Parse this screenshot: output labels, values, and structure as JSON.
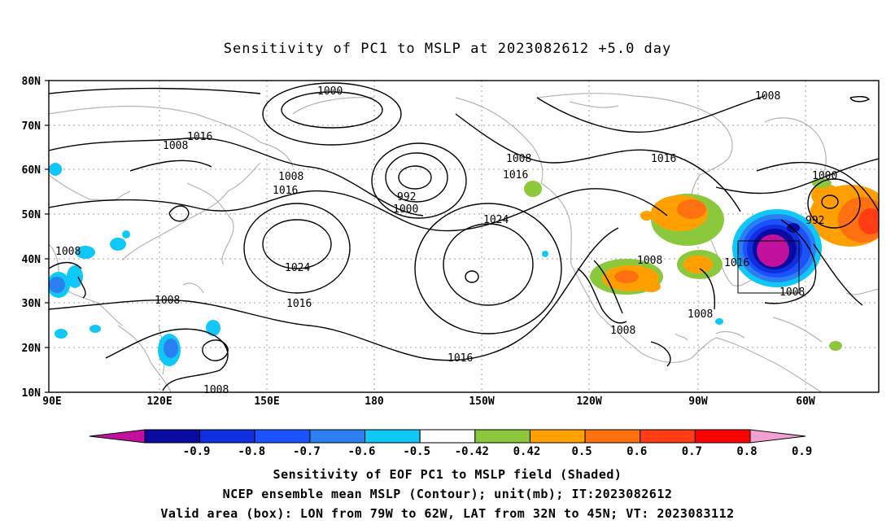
{
  "title": "Sensitivity of PC1 to MSLP at 2023082612 +5.0 day",
  "lat_ticks": [
    "80N",
    "70N",
    "60N",
    "50N",
    "40N",
    "30N",
    "20N",
    "10N"
  ],
  "lon_ticks": [
    "90E",
    "120E",
    "150E",
    "180",
    "150W",
    "120W",
    "90W",
    "60W"
  ],
  "contour_labels": [
    {
      "id": "c1",
      "text": "1000"
    },
    {
      "id": "c2",
      "text": "1008"
    },
    {
      "id": "c3",
      "text": "1016"
    },
    {
      "id": "c4",
      "text": "1008"
    },
    {
      "id": "c5",
      "text": "1008"
    },
    {
      "id": "c6",
      "text": "1016"
    },
    {
      "id": "c7",
      "text": "1008"
    },
    {
      "id": "c8",
      "text": "1016"
    },
    {
      "id": "c9",
      "text": "992"
    },
    {
      "id": "c10",
      "text": "1000"
    },
    {
      "id": "c11",
      "text": "1024"
    },
    {
      "id": "c12",
      "text": "1008"
    },
    {
      "id": "c13",
      "text": "1024"
    },
    {
      "id": "c14",
      "text": "1016"
    },
    {
      "id": "c15",
      "text": "1008"
    },
    {
      "id": "c16",
      "text": "1016"
    },
    {
      "id": "c17",
      "text": "1008"
    },
    {
      "id": "c18",
      "text": "1016"
    },
    {
      "id": "c19",
      "text": "1000"
    },
    {
      "id": "c20",
      "text": "992"
    },
    {
      "id": "c21",
      "text": "1008"
    },
    {
      "id": "c22",
      "text": "1008"
    },
    {
      "id": "c23",
      "text": "1008"
    },
    {
      "id": "c24",
      "text": "1008"
    }
  ],
  "colorbar": {
    "labels": [
      "-0.9",
      "-0.8",
      "-0.7",
      "-0.6",
      "-0.5",
      "-0.42",
      "0.42",
      "0.5",
      "0.6",
      "0.7",
      "0.8",
      "0.9"
    ],
    "colors": [
      "#c0109c",
      "#0a0aa0",
      "#1030e0",
      "#1a52ff",
      "#2a80f0",
      "#10c8f8",
      "#ffffff",
      "#8cc83c",
      "#ffa000",
      "#ff7010",
      "#ff3c14",
      "#ff0000",
      "#f0a0d0"
    ]
  },
  "captions": [
    "Sensitivity of EOF PC1 to MSLP field (Shaded)",
    "NCEP ensemble mean MSLP (Contour); unit(mb); IT:2023082612",
    "Valid area (box): LON from 79W to 62W, LAT from 32N to 45N; VT: 2023083112"
  ]
}
